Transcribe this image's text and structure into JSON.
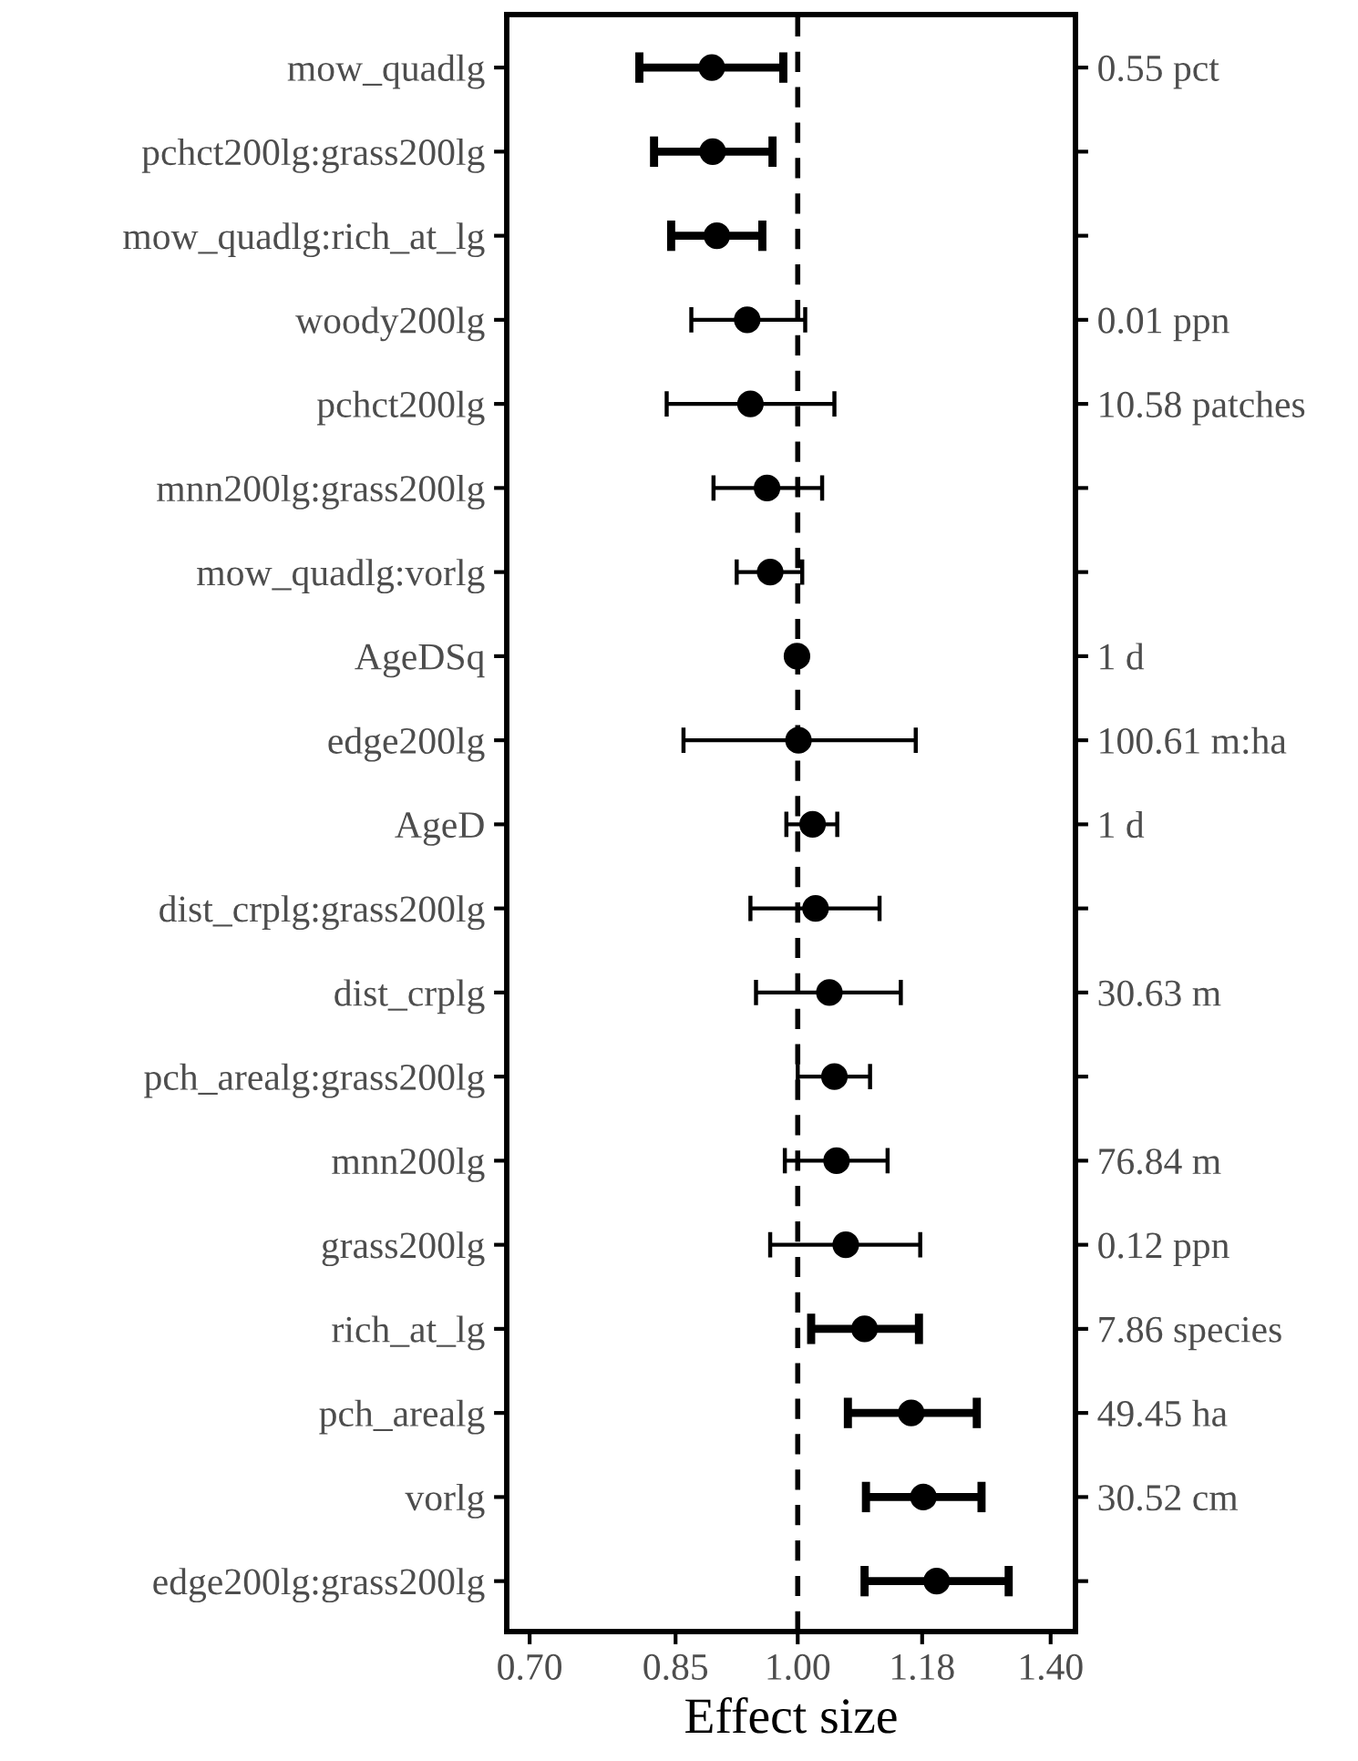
{
  "chart_data": {
    "type": "scatter",
    "orientation": "horizontal",
    "log": "x",
    "xlabel": "Effect size",
    "marker": "circle",
    "grid": false,
    "categories": [
      "mow_quadlg",
      "pchct200lg:grass200lg",
      "mow_quadlg:rich_at_lg",
      "woody200lg",
      "pchct200lg",
      "mnn200lg:grass200lg",
      "mow_quadlg:vorlg",
      "AgeDSq",
      "edge200lg",
      "AgeD",
      "dist_crplg:grass200lg",
      "dist_crplg",
      "pch_arealg:grass200lg",
      "mnn200lg",
      "grass200lg",
      "rich_at_lg",
      "pch_arealg",
      "vorlg",
      "edge200lg:grass200lg"
    ],
    "xlim": [
      0.679,
      1.447
    ],
    "xticks": [
      {
        "value": 0.7,
        "label": "0.70"
      },
      0.85,
      {
        "value": 1.0,
        "label": "1.00"
      },
      1.18,
      {
        "value": 1.4,
        "label": "1.40"
      }
    ],
    "series": [
      {
        "color": "#000000",
        "values": [
          null,
          null,
          null,
          0.935,
          0.939,
          0.96,
          0.964,
          0.999,
          1.001,
          1.02,
          1.024,
          1.043,
          1.05,
          1.053,
          1.066,
          null,
          null,
          null,
          null
        ],
        "errors": [
          null,
          null,
          null,
          [
            0.868,
            1.01
          ],
          [
            0.84,
            1.05
          ],
          [
            0.894,
            1.033
          ],
          [
            0.922,
            1.006
          ],
          null,
          [
            0.859,
            1.17
          ],
          [
            0.985,
            1.054
          ],
          [
            0.939,
            1.115
          ],
          [
            0.946,
            1.147
          ],
          [
            1.0,
            1.101
          ],
          [
            0.983,
            1.127
          ],
          [
            0.964,
            1.177
          ],
          null,
          null,
          null,
          null
        ]
      },
      {
        "color": "#000000",
        "values": [
          0.892,
          0.893,
          0.898,
          null,
          null,
          null,
          null,
          null,
          null,
          null,
          null,
          null,
          null,
          null,
          null,
          1.093,
          1.163,
          1.182,
          1.203
        ],
        "errors": [
          [
            0.81,
            0.981
          ],
          [
            0.826,
            0.967
          ],
          [
            0.845,
            0.954
          ],
          null,
          null,
          null,
          null,
          null,
          null,
          null,
          null,
          null,
          null,
          null,
          null,
          [
            1.018,
            1.175
          ],
          [
            1.069,
            1.269
          ],
          [
            1.095,
            1.277
          ],
          [
            1.093,
            1.324
          ]
        ]
      }
    ],
    "ref_lines": [
      {
        "axis": "x",
        "value": 1.0,
        "line_style": "dashed",
        "color": "#000000"
      }
    ],
    "y2_categories": [
      "0.55 pct",
      null,
      null,
      "0.01 ppn",
      "10.58 patches",
      null,
      null,
      "1 d",
      "100.61 m:ha",
      "1 d",
      null,
      "30.63 m",
      null,
      "76.84 m",
      "0.12 ppn",
      "7.86 species",
      "49.45 ha",
      "30.52 cm",
      null
    ]
  }
}
